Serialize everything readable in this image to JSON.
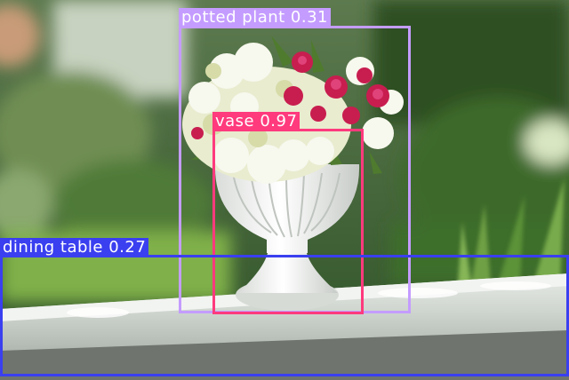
{
  "detections": [
    {
      "id": "potted-plant",
      "label": "potted plant 0.31",
      "color": "#c49cff"
    },
    {
      "id": "vase",
      "label": "vase 0.97",
      "color": "#ff3a7d"
    },
    {
      "id": "dining-table",
      "label": "dining table 0.27",
      "color": "#3a3ff0"
    }
  ],
  "scene": {
    "icons": [
      "flower-bouquet-icon",
      "white-vase-icon",
      "railing-icon"
    ]
  }
}
